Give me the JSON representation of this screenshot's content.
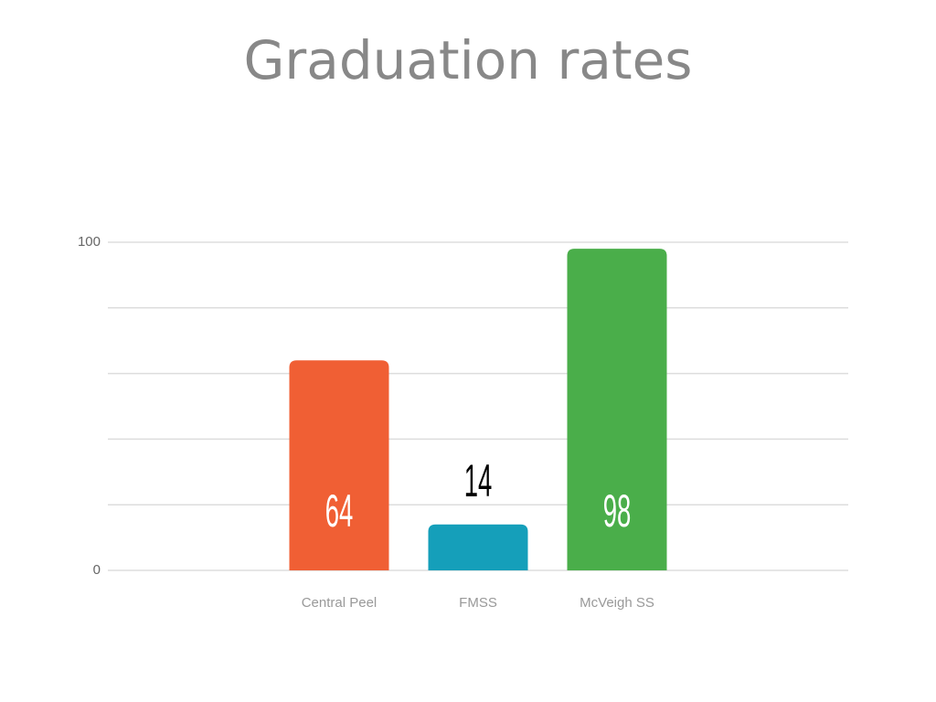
{
  "chart_data": {
    "type": "bar",
    "title": "Graduation rates",
    "categories": [
      "Central Peel",
      "FMSS",
      "McVeigh SS"
    ],
    "values": [
      64,
      14,
      98
    ],
    "colors": [
      "#f05f34",
      "#159fba",
      "#4aae4a"
    ],
    "ylim": [
      0,
      100
    ],
    "yticks": [
      0,
      100
    ],
    "minor_grid": [
      20,
      40,
      60,
      80
    ],
    "grid": true
  }
}
